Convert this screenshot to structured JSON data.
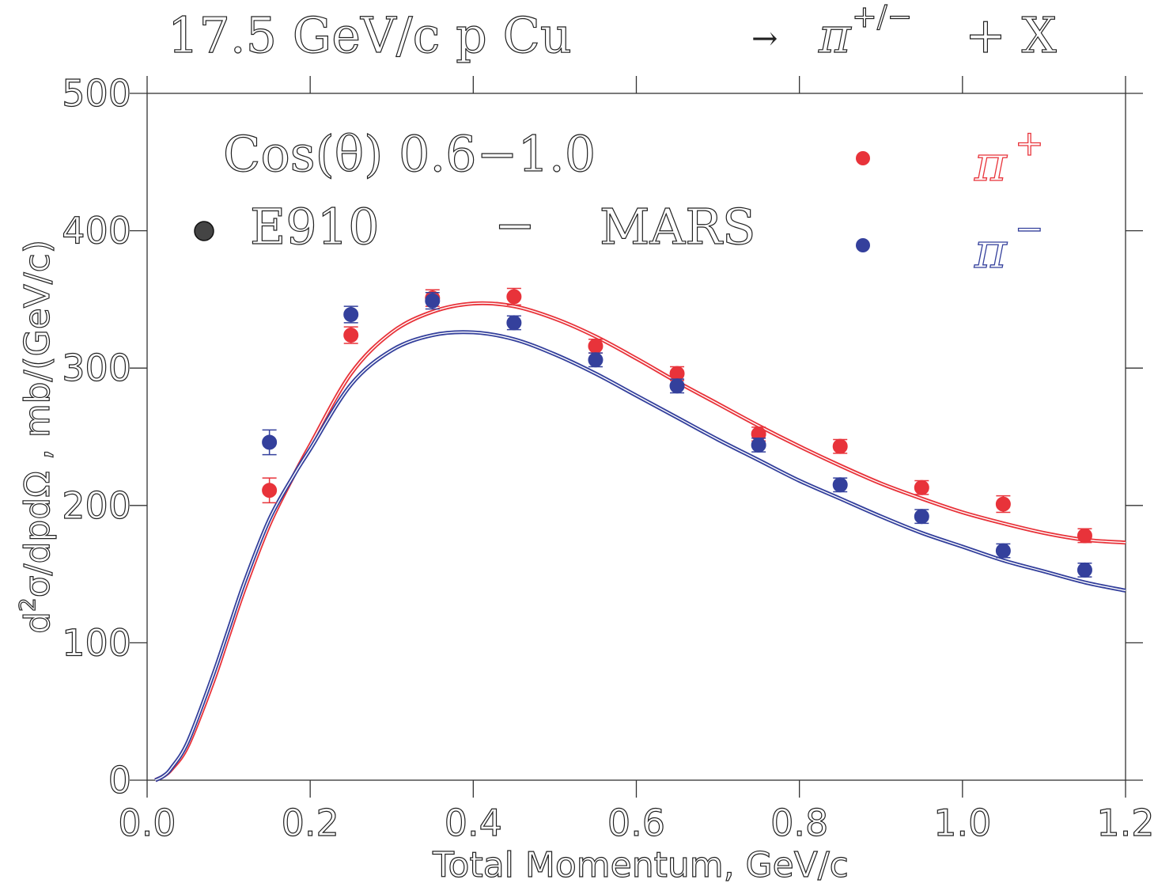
{
  "chart_data": {
    "type": "scatter",
    "title": {
      "main": "17.5 GeV/c p Cu",
      "arrow": "→",
      "particle": "π",
      "charge": "+/−",
      "suffix": "+ X"
    },
    "xlabel": "Total Momentum, GeV/c",
    "ylabel_prefix": "d",
    "ylabel_sup": "2",
    "ylabel_rest": "σ/dpdΩ , mb/(GeV/c)",
    "xlim": [
      0.0,
      1.2
    ],
    "ylim": [
      0,
      500
    ],
    "x_ticks": [
      "0.0",
      "0.2",
      "0.4",
      "0.6",
      "0.8",
      "1.0",
      "1.2"
    ],
    "y_ticks": [
      "0",
      "100",
      "200",
      "300",
      "400",
      "500"
    ],
    "annotation": {
      "cos_range": "Cos(θ) 0.6−1.0",
      "data_label": "E910",
      "dash": "−",
      "model_label": "MARS"
    },
    "legend": {
      "placement": "top-right",
      "entries": [
        {
          "symbol": "π",
          "sup": "+",
          "color": "#e8333a"
        },
        {
          "symbol": "π",
          "sup": "−",
          "color": "#34409c"
        }
      ]
    },
    "series": [
      {
        "name": "π+",
        "kind": "data",
        "color": "#e8333a",
        "points": [
          {
            "x": 0.15,
            "y": 211,
            "err": 9
          },
          {
            "x": 0.25,
            "y": 324,
            "err": 6
          },
          {
            "x": 0.35,
            "y": 351,
            "err": 6
          },
          {
            "x": 0.45,
            "y": 352,
            "err": 6
          },
          {
            "x": 0.55,
            "y": 316,
            "err": 5
          },
          {
            "x": 0.65,
            "y": 296,
            "err": 5
          },
          {
            "x": 0.75,
            "y": 252,
            "err": 5
          },
          {
            "x": 0.85,
            "y": 243,
            "err": 5
          },
          {
            "x": 0.95,
            "y": 213,
            "err": 5
          },
          {
            "x": 1.05,
            "y": 201,
            "err": 6
          },
          {
            "x": 1.15,
            "y": 178,
            "err": 5
          }
        ]
      },
      {
        "name": "π−",
        "kind": "data",
        "color": "#34409c",
        "points": [
          {
            "x": 0.15,
            "y": 246,
            "err": 9
          },
          {
            "x": 0.25,
            "y": 339,
            "err": 6
          },
          {
            "x": 0.35,
            "y": 349,
            "err": 6
          },
          {
            "x": 0.45,
            "y": 333,
            "err": 5
          },
          {
            "x": 0.55,
            "y": 306,
            "err": 5
          },
          {
            "x": 0.65,
            "y": 287,
            "err": 5
          },
          {
            "x": 0.75,
            "y": 244,
            "err": 5
          },
          {
            "x": 0.85,
            "y": 215,
            "err": 5
          },
          {
            "x": 0.95,
            "y": 192,
            "err": 5
          },
          {
            "x": 1.05,
            "y": 167,
            "err": 5
          },
          {
            "x": 1.15,
            "y": 153,
            "err": 5
          }
        ]
      },
      {
        "name": "MARS π+",
        "kind": "model",
        "color": "#e8333a",
        "x": [
          0.01,
          0.02,
          0.03,
          0.05,
          0.08,
          0.1,
          0.12,
          0.15,
          0.18,
          0.2,
          0.25,
          0.3,
          0.35,
          0.4,
          0.45,
          0.5,
          0.55,
          0.6,
          0.65,
          0.7,
          0.75,
          0.8,
          0.85,
          0.9,
          0.95,
          1.0,
          1.05,
          1.1,
          1.15,
          1.2
        ],
        "y": [
          0,
          3,
          8,
          25,
          70,
          105,
          140,
          186,
          222,
          244,
          296,
          326,
          341,
          347,
          345,
          336,
          323,
          307,
          290,
          274,
          258,
          243,
          229,
          216,
          205,
          195,
          187,
          180,
          175,
          173
        ]
      },
      {
        "name": "MARS π−",
        "kind": "model",
        "color": "#34409c",
        "x": [
          0.01,
          0.02,
          0.03,
          0.05,
          0.08,
          0.1,
          0.12,
          0.15,
          0.18,
          0.2,
          0.25,
          0.3,
          0.35,
          0.4,
          0.45,
          0.5,
          0.55,
          0.6,
          0.65,
          0.7,
          0.75,
          0.8,
          0.85,
          0.9,
          0.95,
          1.0,
          1.05,
          1.1,
          1.15,
          1.2
        ],
        "y": [
          0,
          3,
          9,
          28,
          75,
          110,
          145,
          190,
          222,
          241,
          288,
          313,
          324,
          326,
          321,
          310,
          296,
          280,
          264,
          248,
          233,
          218,
          205,
          192,
          180,
          170,
          160,
          152,
          144,
          138
        ]
      }
    ]
  }
}
